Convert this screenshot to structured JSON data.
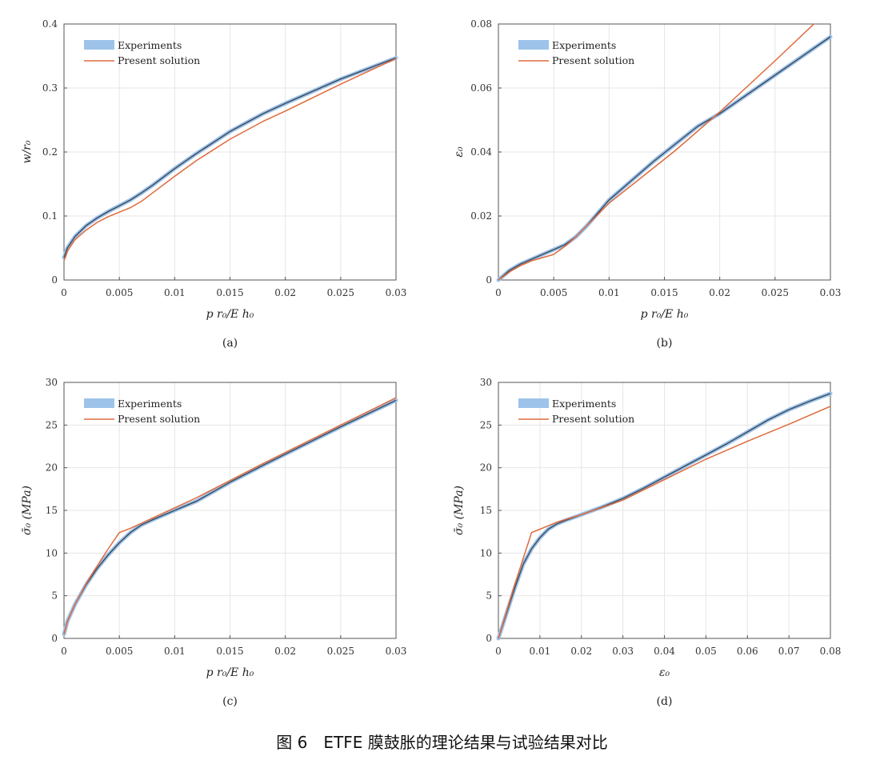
{
  "caption": "图 6　ETFE 膜鼓胀的理论结果与试验结果对比",
  "colors": {
    "experiments": "#9ec3ea",
    "experiments_edge": "#3a4a5a",
    "present": "#e06a3c",
    "grid": "#e6e6e6",
    "axis": "#555555"
  },
  "chart_data": [
    {
      "type": "line",
      "panel_label": "(a)",
      "xlabel": "p r₀/E h₀",
      "ylabel": "w/r₀",
      "xlim": [
        0,
        0.03
      ],
      "ylim": [
        0,
        0.4
      ],
      "xticks": [
        0,
        0.005,
        0.01,
        0.015,
        0.02,
        0.025,
        0.03
      ],
      "xtick_labels": [
        "0",
        "0.005",
        "0.01",
        "0.015",
        "0.02",
        "0.025",
        "0.03"
      ],
      "yticks": [
        0,
        0.1,
        0.2,
        0.3,
        0.4
      ],
      "ytick_labels": [
        "0",
        "0.1",
        "0.2",
        "0.3",
        "0.4"
      ],
      "grid": true,
      "legend": "top-left",
      "series": [
        {
          "name": "Experiments",
          "x": [
            0,
            0.0003,
            0.001,
            0.002,
            0.003,
            0.004,
            0.005,
            0.006,
            0.007,
            0.008,
            0.01,
            0.012,
            0.015,
            0.018,
            0.02,
            0.025,
            0.03
          ],
          "y": [
            0.035,
            0.05,
            0.068,
            0.085,
            0.097,
            0.107,
            0.116,
            0.125,
            0.136,
            0.148,
            0.174,
            0.198,
            0.232,
            0.26,
            0.276,
            0.314,
            0.347
          ]
        },
        {
          "name": "Present solution",
          "x": [
            0,
            0.0003,
            0.001,
            0.002,
            0.003,
            0.004,
            0.005,
            0.006,
            0.007,
            0.008,
            0.01,
            0.012,
            0.015,
            0.018,
            0.02,
            0.025,
            0.03
          ],
          "y": [
            0.03,
            0.045,
            0.063,
            0.078,
            0.09,
            0.099,
            0.106,
            0.113,
            0.123,
            0.136,
            0.162,
            0.187,
            0.22,
            0.248,
            0.264,
            0.306,
            0.346
          ]
        }
      ]
    },
    {
      "type": "line",
      "panel_label": "(b)",
      "xlabel": "p r₀/E h₀",
      "ylabel": "ε₀",
      "xlim": [
        0,
        0.03
      ],
      "ylim": [
        0,
        0.08
      ],
      "xticks": [
        0,
        0.005,
        0.01,
        0.015,
        0.02,
        0.025,
        0.03
      ],
      "xtick_labels": [
        "0",
        "0.005",
        "0.01",
        "0.015",
        "0.02",
        "0.025",
        "0.03"
      ],
      "yticks": [
        0,
        0.02,
        0.04,
        0.06,
        0.08
      ],
      "ytick_labels": [
        "0",
        "0.02",
        "0.04",
        "0.06",
        "0.08"
      ],
      "grid": true,
      "legend": "top-left",
      "series": [
        {
          "name": "Experiments",
          "x": [
            0,
            0.001,
            0.002,
            0.003,
            0.004,
            0.005,
            0.006,
            0.007,
            0.008,
            0.009,
            0.01,
            0.012,
            0.014,
            0.016,
            0.018,
            0.02,
            0.025,
            0.03
          ],
          "y": [
            0,
            0.003,
            0.005,
            0.0065,
            0.008,
            0.0095,
            0.011,
            0.0135,
            0.017,
            0.021,
            0.025,
            0.031,
            0.037,
            0.0425,
            0.048,
            0.052,
            0.064,
            0.076
          ]
        },
        {
          "name": "Present solution",
          "x": [
            0,
            0.001,
            0.002,
            0.003,
            0.004,
            0.005,
            0.006,
            0.007,
            0.008,
            0.009,
            0.01,
            0.012,
            0.014,
            0.016,
            0.018,
            0.02,
            0.025,
            0.0285
          ],
          "y": [
            0,
            0.0025,
            0.0045,
            0.006,
            0.007,
            0.008,
            0.0105,
            0.0135,
            0.017,
            0.0205,
            0.024,
            0.0295,
            0.035,
            0.0405,
            0.0465,
            0.0525,
            0.0685,
            0.08
          ]
        }
      ]
    },
    {
      "type": "line",
      "panel_label": "(c)",
      "xlabel": "p r₀/E h₀",
      "ylabel": "σ̄₀ (MPa)",
      "xlim": [
        0,
        0.03
      ],
      "ylim": [
        0,
        30
      ],
      "xticks": [
        0,
        0.005,
        0.01,
        0.015,
        0.02,
        0.025,
        0.03
      ],
      "xtick_labels": [
        "0",
        "0.005",
        "0.01",
        "0.015",
        "0.02",
        "0.025",
        "0.03"
      ],
      "yticks": [
        0,
        5,
        10,
        15,
        20,
        25,
        30
      ],
      "ytick_labels": [
        "0",
        "5",
        "10",
        "15",
        "20",
        "25",
        "30"
      ],
      "grid": true,
      "legend": "top-left",
      "series": [
        {
          "name": "Experiments",
          "x": [
            0,
            0.0003,
            0.001,
            0.002,
            0.003,
            0.004,
            0.005,
            0.006,
            0.007,
            0.008,
            0.01,
            0.012,
            0.015,
            0.018,
            0.02,
            0.025,
            0.03
          ],
          "y": [
            0.5,
            2,
            4,
            6.3,
            8.2,
            9.8,
            11.2,
            12.4,
            13.3,
            13.9,
            15,
            16.1,
            18.3,
            20.3,
            21.6,
            24.8,
            27.9
          ]
        },
        {
          "name": "Present solution",
          "x": [
            0,
            0.0003,
            0.001,
            0.002,
            0.003,
            0.004,
            0.005,
            0.006,
            0.007,
            0.008,
            0.01,
            0.012,
            0.015,
            0.018,
            0.02,
            0.025,
            0.03
          ],
          "y": [
            0.5,
            2,
            4,
            6.4,
            8.5,
            10.5,
            12.4,
            12.9,
            13.5,
            14.1,
            15.3,
            16.5,
            18.5,
            20.5,
            21.8,
            25,
            28.2
          ]
        }
      ]
    },
    {
      "type": "line",
      "panel_label": "(d)",
      "xlabel": "ε₀",
      "ylabel": "σ̄₀ (MPa)",
      "xlim": [
        0,
        0.08
      ],
      "ylim": [
        0,
        30
      ],
      "xticks": [
        0,
        0.01,
        0.02,
        0.03,
        0.04,
        0.05,
        0.06,
        0.07,
        0.08
      ],
      "xtick_labels": [
        "0",
        "0.01",
        "0.02",
        "0.03",
        "0.04",
        "0.05",
        "0.06",
        "0.07",
        "0.08"
      ],
      "yticks": [
        0,
        5,
        10,
        15,
        20,
        25,
        30
      ],
      "ytick_labels": [
        "0",
        "5",
        "10",
        "15",
        "20",
        "25",
        "30"
      ],
      "grid": true,
      "legend": "top-left",
      "series": [
        {
          "name": "Experiments",
          "x": [
            0,
            0.002,
            0.004,
            0.006,
            0.008,
            0.01,
            0.012,
            0.014,
            0.016,
            0.02,
            0.025,
            0.03,
            0.035,
            0.04,
            0.045,
            0.05,
            0.055,
            0.06,
            0.065,
            0.07,
            0.075,
            0.08
          ],
          "y": [
            0,
            3,
            6,
            8.7,
            10.5,
            11.8,
            12.8,
            13.4,
            13.8,
            14.5,
            15.4,
            16.4,
            17.6,
            18.9,
            20.2,
            21.5,
            22.8,
            24.2,
            25.6,
            26.8,
            27.8,
            28.7
          ]
        },
        {
          "name": "Present solution",
          "x": [
            0,
            0.002,
            0.004,
            0.006,
            0.008,
            0.01,
            0.012,
            0.014,
            0.016,
            0.02,
            0.03,
            0.04,
            0.05,
            0.06,
            0.07,
            0.08
          ],
          "y": [
            0,
            3.2,
            6.4,
            9.4,
            12.4,
            12.8,
            13.2,
            13.6,
            13.9,
            14.5,
            16.2,
            18.6,
            21,
            23.1,
            25.1,
            27.2
          ]
        }
      ]
    }
  ]
}
